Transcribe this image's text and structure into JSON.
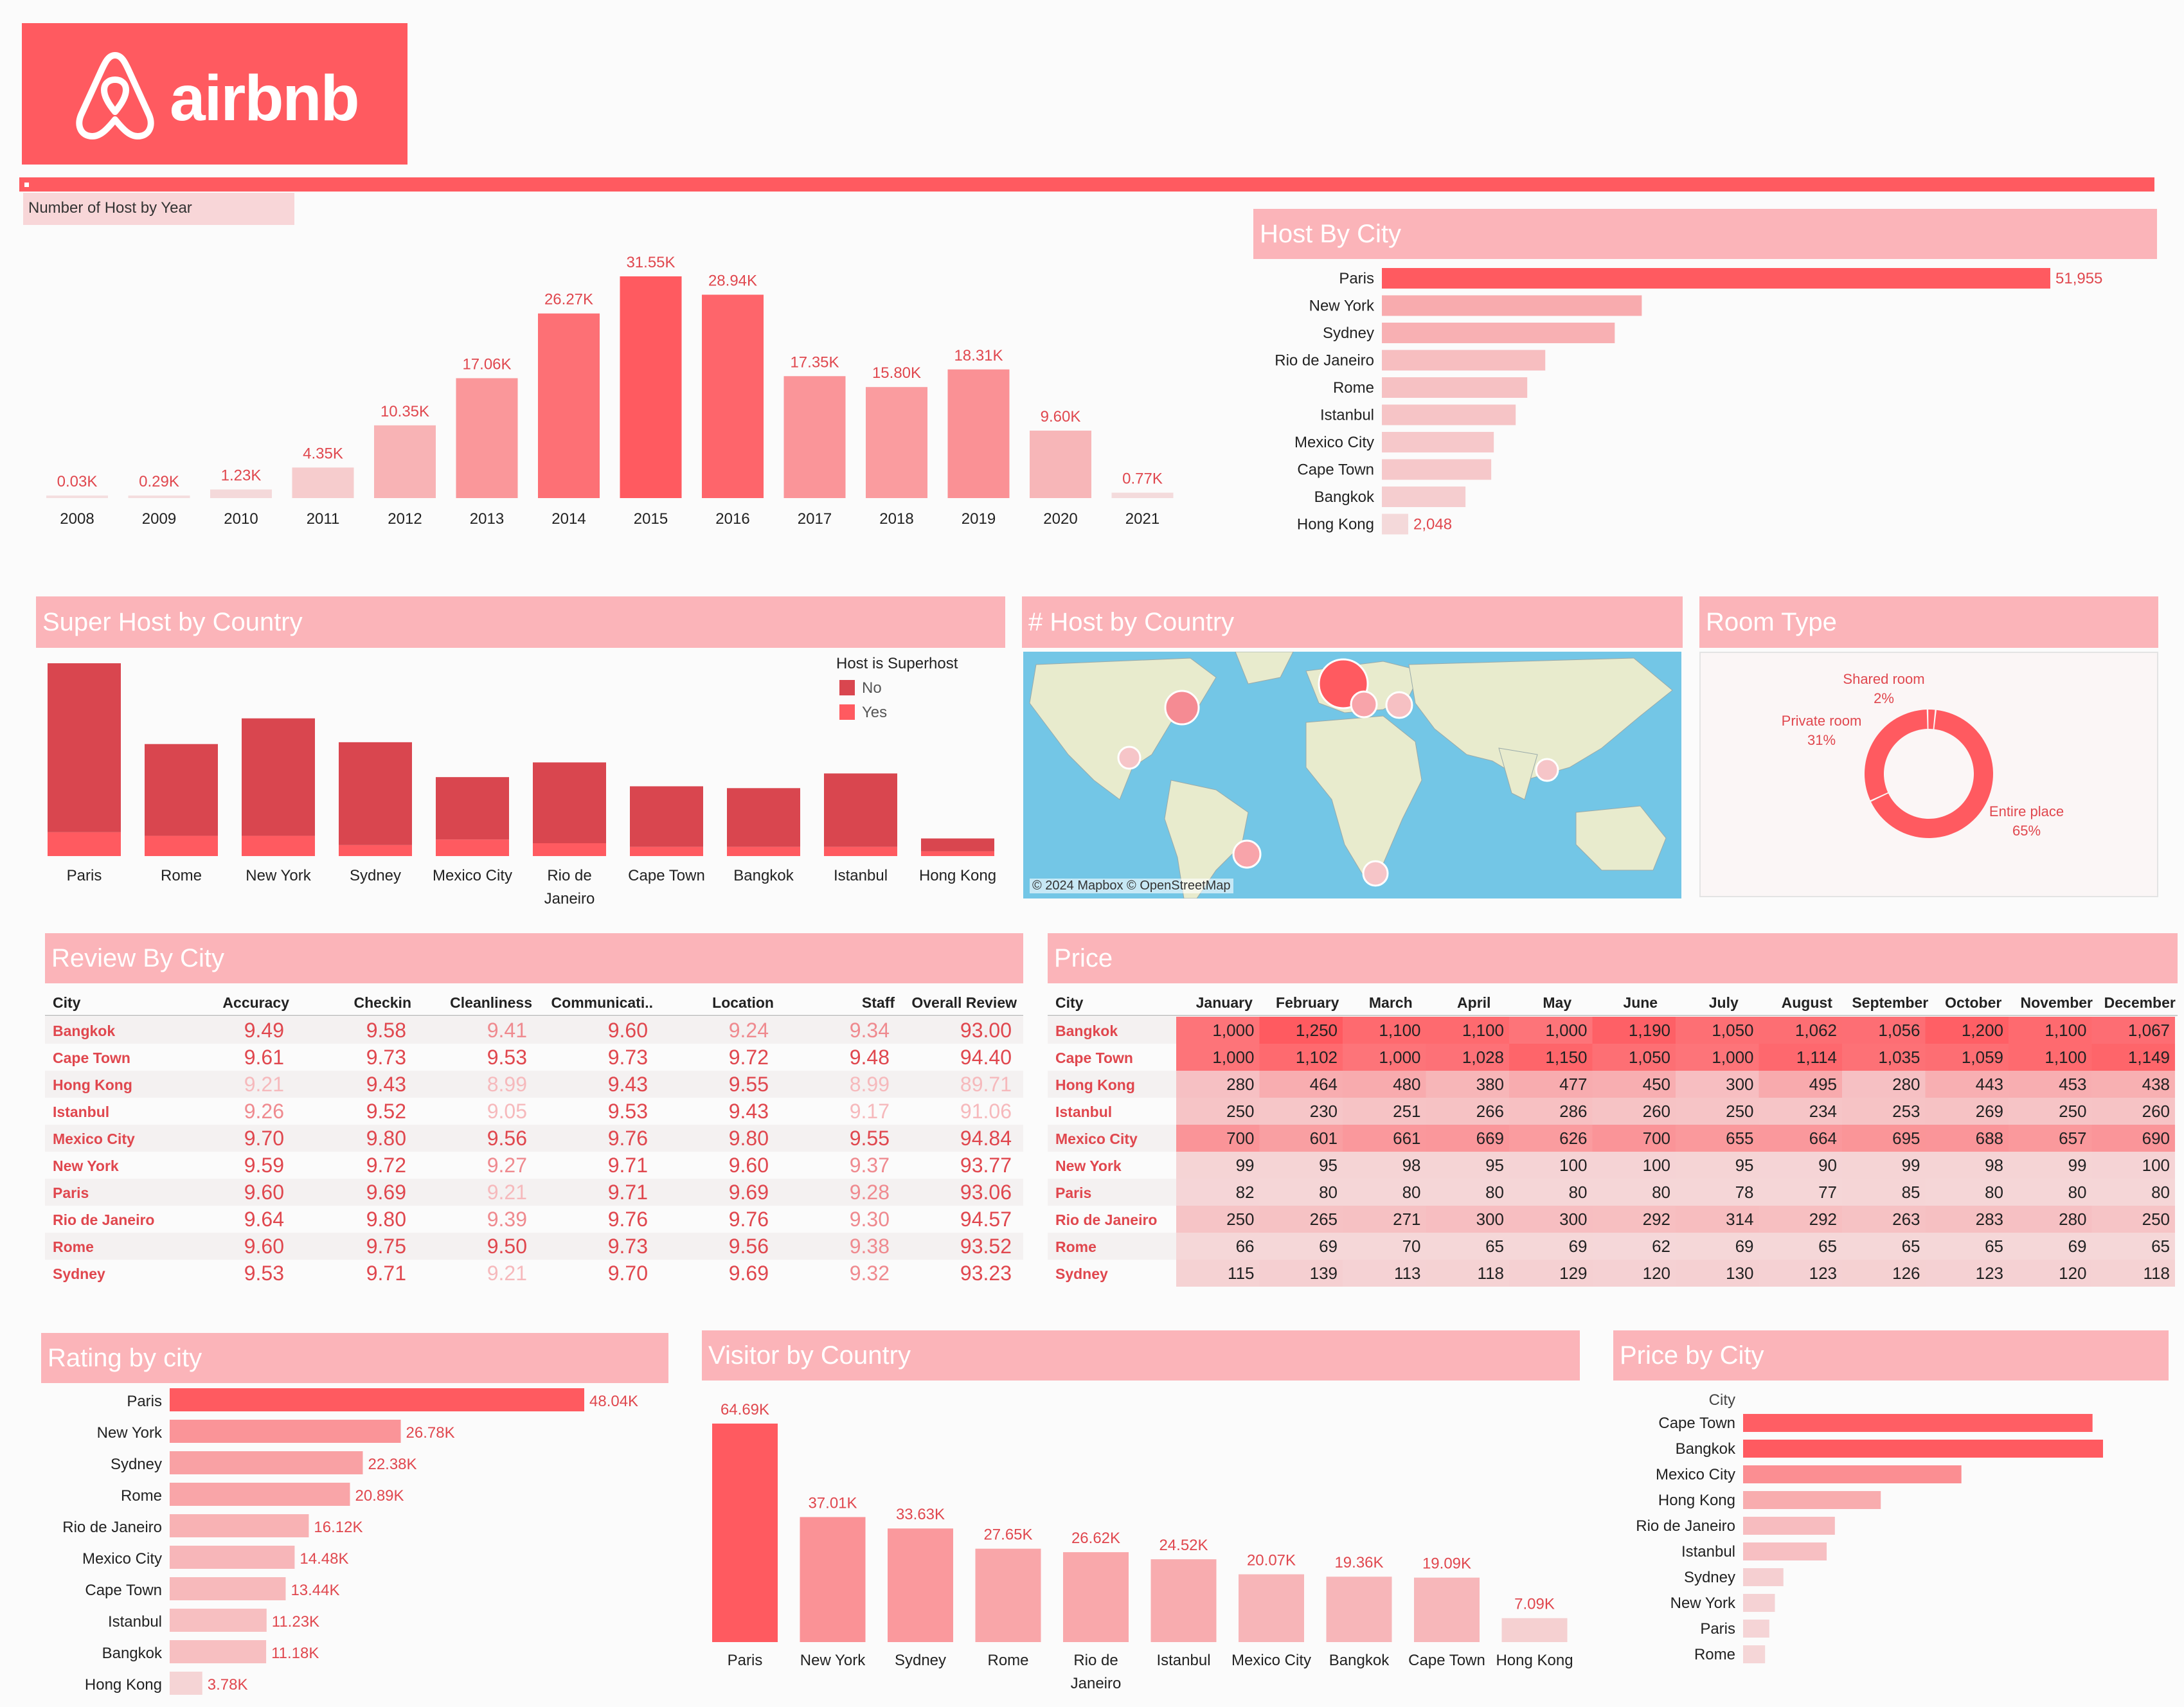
{
  "brand": {
    "name": "airbnb",
    "accent": "#ff5a60",
    "logo_icon": "airbnb-belo-icon"
  },
  "palette": {
    "accent": "#ff5a60",
    "title_bg": "#fbb4b9",
    "dark": "#d9464f",
    "light": "#f4d3d5"
  },
  "sheet_label": "Number of Host by Year",
  "panels": {
    "host_by_city": "Host By City",
    "super_host": "Super Host by Country",
    "host_by_country": "# Host by Country",
    "room_type": "Room Type",
    "review_by_city": "Review By City",
    "price": "Price",
    "rating_by_city": "Rating by city",
    "visitor_by_country": "Visitor by Country",
    "price_by_city": "Price by City"
  },
  "map": {
    "attribution": "© 2024 Mapbox © OpenStreetMap",
    "ocean": "#73c6e6",
    "land": "#e8ebcd"
  },
  "chart_data": [
    {
      "id": "hosts_by_year",
      "type": "bar",
      "categories": [
        "2008",
        "2009",
        "2010",
        "2011",
        "2012",
        "2013",
        "2014",
        "2015",
        "2016",
        "2017",
        "2018",
        "2019",
        "2020",
        "2021"
      ],
      "values": [
        0.03,
        0.29,
        1.23,
        4.35,
        10.35,
        17.06,
        26.27,
        31.55,
        28.94,
        17.35,
        15.8,
        18.31,
        9.6,
        0.77
      ],
      "labels": [
        "0.03K",
        "0.29K",
        "1.23K",
        "4.35K",
        "10.35K",
        "17.06K",
        "26.27K",
        "31.55K",
        "28.94K",
        "17.35K",
        "15.80K",
        "18.31K",
        "9.60K",
        "0.77K"
      ]
    },
    {
      "id": "host_by_city",
      "type": "bar",
      "orientation": "horizontal",
      "categories": [
        "Paris",
        "New York",
        "Sydney",
        "Rio de Janeiro",
        "Rome",
        "Istanbul",
        "Mexico City",
        "Cape Town",
        "Bangkok",
        "Hong Kong"
      ],
      "values": [
        51955,
        20200,
        18100,
        12700,
        11300,
        10400,
        8700,
        8500,
        6500,
        2048
      ],
      "labels": [
        "51,955",
        "",
        "",
        "",
        "",
        "",
        "",
        "",
        "",
        "2,048"
      ]
    },
    {
      "id": "super_host",
      "type": "bar",
      "stacked": true,
      "categories": [
        "Paris",
        "Rome",
        "New York",
        "Sydney",
        "Mexico City",
        "Rio de Janeiro",
        "Cape Town",
        "Bangkok",
        "Istanbul",
        "Hong Kong"
      ],
      "category_lines": [
        [
          "Paris"
        ],
        [
          "Rome"
        ],
        [
          "New York"
        ],
        [
          "Sydney"
        ],
        [
          "Mexico City"
        ],
        [
          "Rio de",
          "Janeiro"
        ],
        [
          "Cape Town"
        ],
        [
          "Bangkok"
        ],
        [
          "Istanbul"
        ],
        [
          "Hong Kong"
        ]
      ],
      "legend_title": "Host is Superhost",
      "series": [
        {
          "name": "No",
          "color": "#d9464f",
          "values": [
            46000,
            25000,
            32000,
            28000,
            17000,
            22000,
            16500,
            16000,
            20000,
            3500
          ]
        },
        {
          "name": "Yes",
          "color": "#ff5a60",
          "values": [
            6500,
            5500,
            5500,
            3000,
            4500,
            3500,
            2500,
            2500,
            2500,
            1300
          ]
        }
      ]
    },
    {
      "id": "room_type",
      "type": "pie",
      "donut": true,
      "slices": [
        {
          "name": "Entire place",
          "value": 65,
          "label": "65%",
          "color": "#ff5a60"
        },
        {
          "name": "Private room",
          "value": 31,
          "label": "31%",
          "color": "#ff5a60"
        },
        {
          "name": "Shared room",
          "value": 2,
          "label": "2%",
          "color": "#ff5a60"
        }
      ]
    },
    {
      "id": "review_by_city",
      "type": "table",
      "columns": [
        "City",
        "Accuracy",
        "Checkin",
        "Cleanliness",
        "Communicati..",
        "Location",
        "Staff",
        "Overall Review"
      ],
      "rows": [
        [
          "Bangkok",
          "9.49",
          "9.58",
          "9.41",
          "9.60",
          "9.24",
          "9.34",
          "93.00"
        ],
        [
          "Cape Town",
          "9.61",
          "9.73",
          "9.53",
          "9.73",
          "9.72",
          "9.48",
          "94.40"
        ],
        [
          "Hong Kong",
          "9.21",
          "9.43",
          "8.99",
          "9.43",
          "9.55",
          "8.99",
          "89.71"
        ],
        [
          "Istanbul",
          "9.26",
          "9.52",
          "9.05",
          "9.53",
          "9.43",
          "9.17",
          "91.06"
        ],
        [
          "Mexico City",
          "9.70",
          "9.80",
          "9.56",
          "9.76",
          "9.80",
          "9.55",
          "94.84"
        ],
        [
          "New York",
          "9.59",
          "9.72",
          "9.27",
          "9.71",
          "9.60",
          "9.37",
          "93.77"
        ],
        [
          "Paris",
          "9.60",
          "9.69",
          "9.21",
          "9.71",
          "9.69",
          "9.28",
          "93.06"
        ],
        [
          "Rio de Janeiro",
          "9.64",
          "9.80",
          "9.39",
          "9.76",
          "9.76",
          "9.30",
          "94.57"
        ],
        [
          "Rome",
          "9.60",
          "9.75",
          "9.50",
          "9.73",
          "9.56",
          "9.38",
          "93.52"
        ],
        [
          "Sydney",
          "9.53",
          "9.71",
          "9.21",
          "9.70",
          "9.69",
          "9.32",
          "93.23"
        ]
      ]
    },
    {
      "id": "price",
      "type": "heatmap",
      "columns": [
        "City",
        "January",
        "February",
        "March",
        "April",
        "May",
        "June",
        "July",
        "August",
        "September",
        "October",
        "November",
        "December"
      ],
      "rows": [
        [
          "Bangkok",
          "1,000",
          "1,250",
          "1,100",
          "1,100",
          "1,000",
          "1,190",
          "1,050",
          "1,062",
          "1,056",
          "1,200",
          "1,100",
          "1,067"
        ],
        [
          "Cape Town",
          "1,000",
          "1,102",
          "1,000",
          "1,028",
          "1,150",
          "1,050",
          "1,000",
          "1,114",
          "1,035",
          "1,059",
          "1,100",
          "1,149"
        ],
        [
          "Hong Kong",
          "280",
          "464",
          "480",
          "380",
          "477",
          "450",
          "300",
          "495",
          "280",
          "443",
          "453",
          "438"
        ],
        [
          "Istanbul",
          "250",
          "230",
          "251",
          "266",
          "286",
          "260",
          "250",
          "234",
          "253",
          "269",
          "250",
          "260"
        ],
        [
          "Mexico City",
          "700",
          "601",
          "661",
          "669",
          "626",
          "700",
          "655",
          "664",
          "695",
          "688",
          "657",
          "690"
        ],
        [
          "New York",
          "99",
          "95",
          "98",
          "95",
          "100",
          "100",
          "95",
          "90",
          "99",
          "98",
          "99",
          "100"
        ],
        [
          "Paris",
          "82",
          "80",
          "80",
          "80",
          "80",
          "80",
          "78",
          "77",
          "85",
          "80",
          "80",
          "80"
        ],
        [
          "Rio de Janeiro",
          "250",
          "265",
          "271",
          "300",
          "300",
          "292",
          "314",
          "292",
          "263",
          "283",
          "280",
          "250"
        ],
        [
          "Rome",
          "66",
          "69",
          "70",
          "65",
          "69",
          "62",
          "69",
          "65",
          "65",
          "65",
          "69",
          "65"
        ],
        [
          "Sydney",
          "115",
          "139",
          "113",
          "118",
          "129",
          "120",
          "130",
          "123",
          "126",
          "123",
          "120",
          "118"
        ]
      ]
    },
    {
      "id": "rating_by_city",
      "type": "bar",
      "orientation": "horizontal",
      "categories": [
        "Paris",
        "New York",
        "Sydney",
        "Rome",
        "Rio de Janeiro",
        "Mexico City",
        "Cape Town",
        "Istanbul",
        "Bangkok",
        "Hong Kong"
      ],
      "values": [
        48.04,
        26.78,
        22.38,
        20.89,
        16.12,
        14.48,
        13.44,
        11.23,
        11.18,
        3.78
      ],
      "labels": [
        "48.04K",
        "26.78K",
        "22.38K",
        "20.89K",
        "16.12K",
        "14.48K",
        "13.44K",
        "11.23K",
        "11.18K",
        "3.78K"
      ]
    },
    {
      "id": "visitor_by_country",
      "type": "bar",
      "categories": [
        "Paris",
        "New York",
        "Sydney",
        "Rome",
        "Rio de Janeiro",
        "Istanbul",
        "Mexico City",
        "Bangkok",
        "Cape Town",
        "Hong Kong"
      ],
      "category_lines": [
        [
          "Paris"
        ],
        [
          "New York"
        ],
        [
          "Sydney"
        ],
        [
          "Rome"
        ],
        [
          "Rio de",
          "Janeiro"
        ],
        [
          "Istanbul"
        ],
        [
          "Mexico City"
        ],
        [
          "Bangkok"
        ],
        [
          "Cape Town"
        ],
        [
          "Hong Kong"
        ]
      ],
      "values": [
        64.69,
        37.01,
        33.63,
        27.65,
        26.62,
        24.52,
        20.07,
        19.36,
        19.09,
        7.09
      ],
      "labels": [
        "64.69K",
        "37.01K",
        "33.63K",
        "27.65K",
        "26.62K",
        "24.52K",
        "20.07K",
        "19.36K",
        "19.09K",
        "7.09K"
      ]
    },
    {
      "id": "price_by_city",
      "type": "bar",
      "orientation": "horizontal",
      "header": "City",
      "categories": [
        "Cape Town",
        "Bangkok",
        "Mexico City",
        "Hong Kong",
        "Rio de Janeiro",
        "Istanbul",
        "Sydney",
        "New York",
        "Paris",
        "Rome"
      ],
      "values": [
        1066,
        1098,
        666,
        420,
        280,
        255,
        123,
        97,
        80,
        67
      ]
    }
  ]
}
